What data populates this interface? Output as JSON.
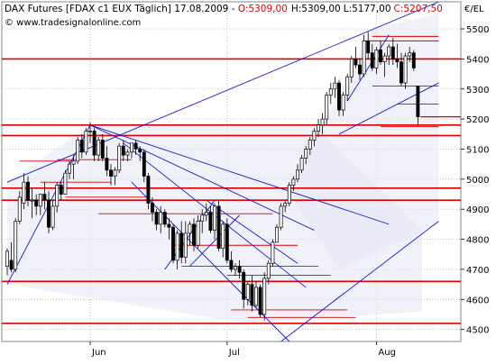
{
  "header": {
    "instrument": "DAX Futures [FDAX c1 EUX  Täglich] 17.08.2009 - ",
    "open": "O:5309,00",
    "high": "H:5309,00",
    "low": "L:5177,00",
    "close": "C:5207,50",
    "watermark": "© www.tradesignalonline.com",
    "unit": "€/EL"
  },
  "colors": {
    "up": "#ffffff",
    "down": "#000000",
    "level": "#dd0000",
    "trend": "#1a1ad0",
    "channel": "#e8e8f6",
    "grid": "#9a9a9a",
    "ohlc_close": "#dd0000"
  },
  "chart_data": {
    "type": "candlestick",
    "title": "DAX Futures [FDAX c1 EUX Täglich] 17.08.2009",
    "ylabel": "€/EL",
    "ylim": [
      4460,
      5590
    ],
    "y_ticks": [
      "5500",
      "5400",
      "5300",
      "5200",
      "5100",
      "5000",
      "4900",
      "4800",
      "4700",
      "4600",
      "4500"
    ],
    "x_ticks": [
      {
        "label": "Jun",
        "index": 20
      },
      {
        "label": "Jul",
        "index": 53
      },
      {
        "label": "Aug",
        "index": 89
      }
    ],
    "ohlc": [
      [
        4710,
        4770,
        4680,
        4760
      ],
      [
        4730,
        4790,
        4690,
        4700
      ],
      [
        4700,
        4870,
        4690,
        4860
      ],
      [
        4860,
        4960,
        4850,
        4940
      ],
      [
        4920,
        5020,
        4900,
        4990
      ],
      [
        4990,
        5010,
        4910,
        4930
      ],
      [
        4930,
        4970,
        4870,
        4930
      ],
      [
        4930,
        4950,
        4880,
        4910
      ],
      [
        4910,
        4950,
        4880,
        4950
      ],
      [
        4950,
        4990,
        4900,
        4930
      ],
      [
        4930,
        4960,
        4820,
        4840
      ],
      [
        4840,
        4930,
        4830,
        4910
      ],
      [
        4910,
        4990,
        4890,
        4980
      ],
      [
        4980,
        4990,
        4930,
        4950
      ],
      [
        4950,
        5030,
        4950,
        5020
      ],
      [
        5020,
        5060,
        5000,
        5050
      ],
      [
        5050,
        5080,
        5000,
        5060
      ],
      [
        5060,
        5140,
        5050,
        5130
      ],
      [
        5130,
        5150,
        5070,
        5090
      ],
      [
        5090,
        5170,
        5080,
        5160
      ],
      [
        5160,
        5190,
        5120,
        5160
      ],
      [
        5160,
        5170,
        5060,
        5080
      ],
      [
        5080,
        5140,
        5060,
        5130
      ],
      [
        5130,
        5150,
        5060,
        5070
      ],
      [
        5070,
        5110,
        5010,
        5030
      ],
      [
        5030,
        5050,
        4980,
        5010
      ],
      [
        5010,
        5040,
        4980,
        5030
      ],
      [
        5030,
        5120,
        5020,
        5110
      ],
      [
        5110,
        5130,
        5060,
        5080
      ],
      [
        5080,
        5100,
        5060,
        5090
      ],
      [
        5090,
        5120,
        5070,
        5120
      ],
      [
        5120,
        5130,
        5080,
        5100
      ],
      [
        5100,
        5110,
        5060,
        5090
      ],
      [
        5090,
        5100,
        4990,
        5010
      ],
      [
        5010,
        5020,
        4900,
        4920
      ],
      [
        4920,
        4940,
        4860,
        4890
      ],
      [
        4890,
        4900,
        4830,
        4850
      ],
      [
        4850,
        4910,
        4820,
        4890
      ],
      [
        4890,
        4900,
        4840,
        4850
      ],
      [
        4850,
        4870,
        4800,
        4840
      ],
      [
        4840,
        4850,
        4720,
        4730
      ],
      [
        4730,
        4830,
        4700,
        4820
      ],
      [
        4820,
        4860,
        4720,
        4740
      ],
      [
        4740,
        4860,
        4720,
        4820
      ],
      [
        4820,
        4860,
        4780,
        4850
      ],
      [
        4850,
        4870,
        4760,
        4780
      ],
      [
        4780,
        4880,
        4770,
        4860
      ],
      [
        4860,
        4900,
        4820,
        4880
      ],
      [
        4880,
        4920,
        4860,
        4890
      ],
      [
        4890,
        4910,
        4820,
        4830
      ],
      [
        4830,
        4920,
        4800,
        4910
      ],
      [
        4910,
        4930,
        4760,
        4770
      ],
      [
        4770,
        4860,
        4740,
        4850
      ],
      [
        4850,
        4870,
        4720,
        4730
      ],
      [
        4730,
        4760,
        4690,
        4700
      ],
      [
        4700,
        4720,
        4680,
        4710
      ],
      [
        4710,
        4730,
        4670,
        4690
      ],
      [
        4690,
        4700,
        4570,
        4600
      ],
      [
        4600,
        4660,
        4580,
        4650
      ],
      [
        4650,
        4680,
        4560,
        4580
      ],
      [
        4580,
        4660,
        4570,
        4640
      ],
      [
        4640,
        4650,
        4540,
        4550
      ],
      [
        4550,
        4690,
        4530,
        4670
      ],
      [
        4670,
        4730,
        4650,
        4720
      ],
      [
        4720,
        4800,
        4710,
        4790
      ],
      [
        4790,
        4850,
        4790,
        4840
      ],
      [
        4840,
        4920,
        4830,
        4910
      ],
      [
        4910,
        4930,
        4890,
        4920
      ],
      [
        4920,
        4990,
        4910,
        4980
      ],
      [
        4980,
        5010,
        4960,
        5000
      ],
      [
        5000,
        5050,
        4990,
        5030
      ],
      [
        5030,
        5080,
        5020,
        5070
      ],
      [
        5070,
        5110,
        5050,
        5100
      ],
      [
        5100,
        5140,
        5080,
        5130
      ],
      [
        5130,
        5170,
        5110,
        5160
      ],
      [
        5160,
        5200,
        5140,
        5180
      ],
      [
        5180,
        5220,
        5150,
        5200
      ],
      [
        5200,
        5290,
        5180,
        5280
      ],
      [
        5280,
        5320,
        5250,
        5300
      ],
      [
        5300,
        5340,
        5270,
        5320
      ],
      [
        5320,
        5330,
        5210,
        5230
      ],
      [
        5230,
        5290,
        5210,
        5280
      ],
      [
        5280,
        5350,
        5260,
        5340
      ],
      [
        5340,
        5410,
        5320,
        5400
      ],
      [
        5400,
        5440,
        5370,
        5380
      ],
      [
        5380,
        5400,
        5330,
        5350
      ],
      [
        5350,
        5480,
        5340,
        5460
      ],
      [
        5460,
        5490,
        5400,
        5420
      ],
      [
        5420,
        5450,
        5360,
        5370
      ],
      [
        5370,
        5440,
        5350,
        5430
      ],
      [
        5430,
        5460,
        5380,
        5390
      ],
      [
        5390,
        5420,
        5340,
        5410
      ],
      [
        5410,
        5450,
        5380,
        5440
      ],
      [
        5440,
        5470,
        5380,
        5400
      ],
      [
        5400,
        5450,
        5370,
        5390
      ],
      [
        5390,
        5420,
        5310,
        5320
      ],
      [
        5320,
        5420,
        5300,
        5410
      ],
      [
        5410,
        5440,
        5390,
        5420
      ],
      [
        5420,
        5430,
        5360,
        5370
      ],
      [
        5309,
        5309,
        5177,
        5207.5
      ]
    ]
  }
}
